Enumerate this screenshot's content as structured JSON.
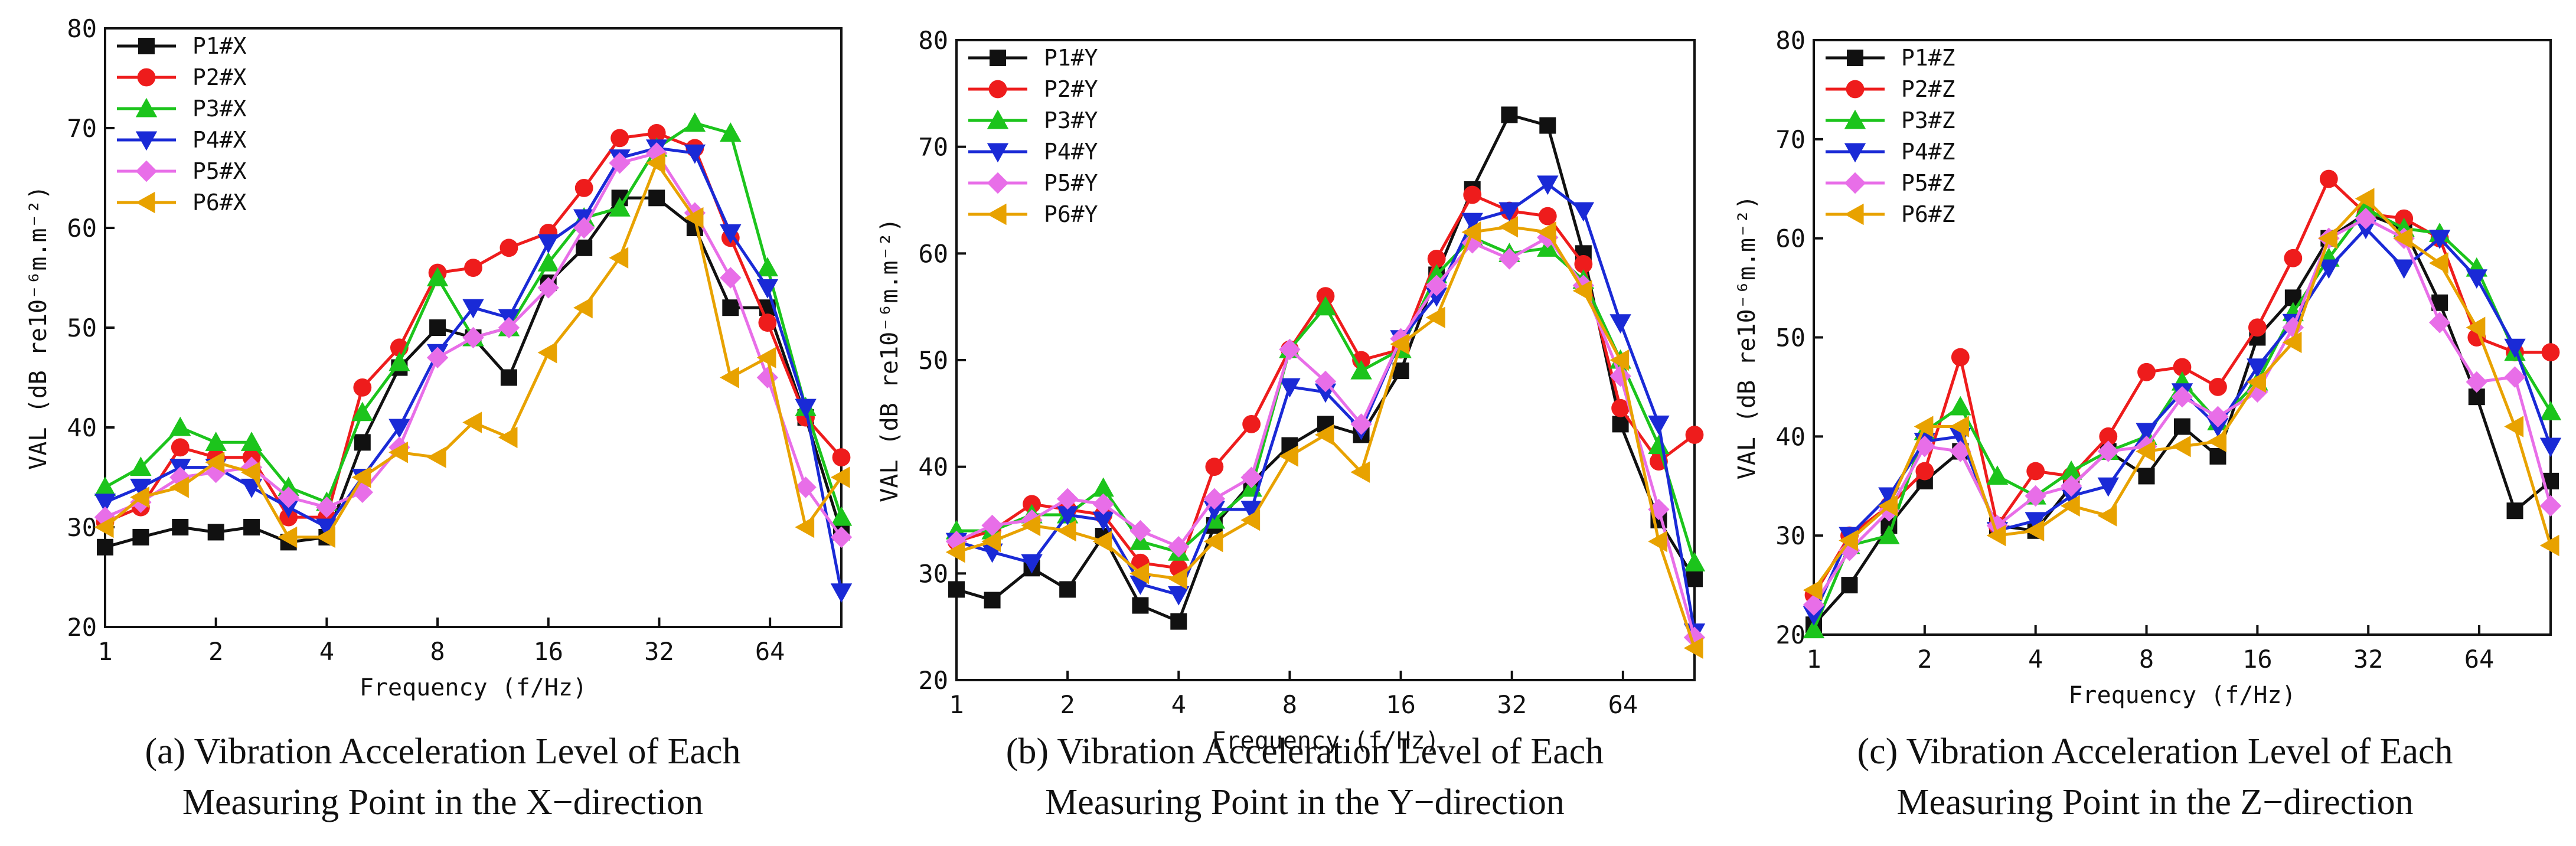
{
  "chart_data": [
    {
      "type": "line",
      "caption_line1": "(a) Vibration Acceleration Level of Each",
      "caption_line2": "Measuring Point in the X−direction",
      "xlabel": "Frequency (f/Hz)",
      "ylabel": "VAL (dB re10⁻⁶m.m⁻²)",
      "x_scale": "log2",
      "xlim": [
        1,
        100
      ],
      "ylim": [
        20,
        80
      ],
      "x_ticks": [
        "1",
        "2",
        "4",
        "8",
        "16",
        "32",
        "64"
      ],
      "y_ticks": [
        "20",
        "30",
        "40",
        "50",
        "60",
        "70",
        "80"
      ],
      "legend_position": "top-left",
      "x": [
        1,
        1.25,
        1.6,
        2,
        2.5,
        3.15,
        4,
        5,
        6.3,
        8,
        10,
        12.5,
        16,
        20,
        25,
        31.5,
        40,
        50,
        63,
        80,
        100
      ],
      "series": [
        {
          "name": "P1#X",
          "color": "#111111",
          "marker": "square",
          "values": [
            28,
            29,
            30,
            29.5,
            30,
            28.5,
            29,
            38.5,
            46,
            50,
            49,
            45,
            54.5,
            58,
            63,
            63,
            60,
            52,
            52,
            41,
            29.5
          ]
        },
        {
          "name": "P2#X",
          "color": "#ee1c1c",
          "marker": "circle",
          "values": [
            30.5,
            32,
            38,
            37,
            37,
            31,
            31,
            44,
            48,
            55.5,
            56,
            58,
            59.5,
            64,
            69,
            69.5,
            68,
            59,
            50.5,
            41,
            37
          ]
        },
        {
          "name": "P3#X",
          "color": "#1cc41c",
          "marker": "triangle-up",
          "values": [
            34,
            36,
            40,
            38.5,
            38.5,
            34,
            32.5,
            41.5,
            46.5,
            55,
            49,
            50,
            56.5,
            61,
            62,
            68,
            70.5,
            69.5,
            56,
            42,
            31
          ]
        },
        {
          "name": "P4#X",
          "color": "#1a2ad6",
          "marker": "triangle-down",
          "values": [
            32.5,
            34,
            36,
            36,
            34,
            32,
            30,
            35,
            40,
            47.5,
            52,
            51,
            58.5,
            61,
            67,
            68,
            67.5,
            59.5,
            54,
            42,
            23.5
          ]
        },
        {
          "name": "P5#X",
          "color": "#e86ee8",
          "marker": "diamond",
          "values": [
            31,
            32.5,
            35,
            35.5,
            36,
            33,
            32,
            33.5,
            38,
            47,
            49,
            50,
            54,
            60,
            66.5,
            67.5,
            61.5,
            55,
            45,
            34,
            29
          ]
        },
        {
          "name": "P6#X",
          "color": "#e8a200",
          "marker": "triangle-left",
          "values": [
            30,
            33,
            34,
            36.5,
            35.5,
            29,
            29,
            35,
            37.5,
            37,
            40.5,
            39,
            47.5,
            52,
            57,
            66.5,
            61,
            45,
            47,
            30,
            35
          ]
        }
      ]
    },
    {
      "type": "line",
      "caption_line1": "(b) Vibration Acceleration Level of Each",
      "caption_line2": "Measuring Point in the Y−direction",
      "xlabel": "Frequency (f/Hz)",
      "ylabel": "VAL (dB re10⁻⁶m.m⁻²)",
      "x_scale": "log2",
      "xlim": [
        1,
        100
      ],
      "ylim": [
        20,
        80
      ],
      "x_ticks": [
        "1",
        "2",
        "4",
        "8",
        "16",
        "32",
        "64"
      ],
      "y_ticks": [
        "20",
        "30",
        "40",
        "50",
        "60",
        "70",
        "80"
      ],
      "legend_position": "top-left",
      "x": [
        1,
        1.25,
        1.6,
        2,
        2.5,
        3.15,
        4,
        5,
        6.3,
        8,
        10,
        12.5,
        16,
        20,
        25,
        31.5,
        40,
        50,
        63,
        80,
        100
      ],
      "series": [
        {
          "name": "P1#Y",
          "color": "#111111",
          "marker": "square",
          "values": [
            28.5,
            27.5,
            30.5,
            28.5,
            33.5,
            27,
            25.5,
            34.5,
            38.5,
            42,
            44,
            43,
            49,
            58,
            66,
            73,
            72,
            60,
            44,
            35,
            29.5
          ]
        },
        {
          "name": "P2#Y",
          "color": "#ee1c1c",
          "marker": "circle",
          "values": [
            33,
            34,
            36.5,
            36,
            35.5,
            31,
            30.5,
            40,
            44,
            51,
            56,
            50,
            51,
            59.5,
            65.5,
            64,
            63.5,
            59,
            45.5,
            40.5,
            43
          ]
        },
        {
          "name": "P3#Y",
          "color": "#1cc41c",
          "marker": "triangle-up",
          "values": [
            34,
            34,
            35.5,
            35.5,
            38,
            33,
            32,
            35,
            38,
            51,
            55,
            49,
            51,
            58,
            61.5,
            60,
            60.5,
            57.5,
            50,
            42,
            31
          ]
        },
        {
          "name": "P4#Y",
          "color": "#1a2ad6",
          "marker": "triangle-down",
          "values": [
            33,
            32,
            31,
            35.5,
            35,
            29,
            28,
            36,
            36,
            47.5,
            47,
            43.5,
            52,
            56,
            63,
            64,
            66.5,
            64,
            53.5,
            44,
            24.5
          ]
        },
        {
          "name": "P5#Y",
          "color": "#e86ee8",
          "marker": "diamond",
          "values": [
            33,
            34.5,
            35,
            37,
            36.5,
            34,
            32.5,
            37,
            39,
            51,
            48,
            44,
            52,
            57,
            61,
            59.5,
            61.5,
            57,
            48.5,
            36,
            24
          ]
        },
        {
          "name": "P6#Y",
          "color": "#e8a200",
          "marker": "triangle-left",
          "values": [
            32,
            33,
            34.5,
            34,
            33,
            30,
            29.5,
            33,
            35,
            41,
            43,
            39.5,
            51.5,
            54,
            62,
            62.5,
            62,
            56.5,
            50,
            33,
            23
          ]
        }
      ]
    },
    {
      "type": "line",
      "caption_line1": "(c) Vibration Acceleration Level of Each",
      "caption_line2": "Measuring Point in the Z−direction",
      "xlabel": "Frequency (f/Hz)",
      "ylabel": "VAL (dB re10⁻⁶m.m⁻²)",
      "x_scale": "log2",
      "xlim": [
        1,
        100
      ],
      "ylim": [
        20,
        80
      ],
      "x_ticks": [
        "1",
        "2",
        "4",
        "8",
        "16",
        "32",
        "64"
      ],
      "y_ticks": [
        "20",
        "30",
        "40",
        "50",
        "60",
        "70",
        "80"
      ],
      "legend_position": "top-left",
      "x": [
        1,
        1.25,
        1.6,
        2,
        2.5,
        3.15,
        4,
        5,
        6.3,
        8,
        10,
        12.5,
        16,
        20,
        25,
        31.5,
        40,
        50,
        63,
        80,
        100
      ],
      "series": [
        {
          "name": "P1#Z",
          "color": "#111111",
          "marker": "square",
          "values": [
            21,
            25,
            31,
            35.5,
            38.5,
            31,
            30.5,
            35,
            38.5,
            36,
            41,
            38,
            50,
            54,
            60,
            62.5,
            61,
            53.5,
            44,
            32.5,
            35.5
          ]
        },
        {
          "name": "P2#Z",
          "color": "#ee1c1c",
          "marker": "circle",
          "values": [
            24,
            30,
            33,
            36.5,
            48,
            31,
            36.5,
            36,
            40,
            46.5,
            47,
            45,
            51,
            58,
            66,
            62.5,
            62,
            60,
            50,
            48.5,
            48.5
          ]
        },
        {
          "name": "P3#Z",
          "color": "#1cc41c",
          "marker": "triangle-up",
          "values": [
            20.5,
            29,
            30,
            40.5,
            43,
            36,
            34,
            36.5,
            38.5,
            40,
            45.5,
            41.5,
            45.5,
            52.5,
            58,
            63,
            61,
            60.5,
            57,
            48.5,
            42.5
          ]
        },
        {
          "name": "P4#Z",
          "color": "#1a2ad6",
          "marker": "triangle-down",
          "values": [
            22,
            30,
            34,
            39.5,
            40,
            30.5,
            31.5,
            34,
            35,
            40.5,
            44.5,
            41,
            47,
            51.5,
            57,
            61,
            57,
            60,
            56,
            49,
            39
          ]
        },
        {
          "name": "P5#Z",
          "color": "#e86ee8",
          "marker": "diamond",
          "values": [
            23,
            28.5,
            32.5,
            39,
            38.5,
            31,
            34,
            35,
            38.5,
            39,
            44,
            42,
            44.5,
            51,
            60,
            62,
            60,
            51.5,
            45.5,
            46,
            33
          ]
        },
        {
          "name": "P6#Z",
          "color": "#e8a200",
          "marker": "triangle-left",
          "values": [
            24.5,
            29.5,
            33,
            41,
            41,
            30,
            30.5,
            33,
            32,
            38.5,
            39,
            39.5,
            45.5,
            49.5,
            60,
            64,
            60,
            57.5,
            51,
            41,
            29
          ]
        }
      ]
    }
  ]
}
